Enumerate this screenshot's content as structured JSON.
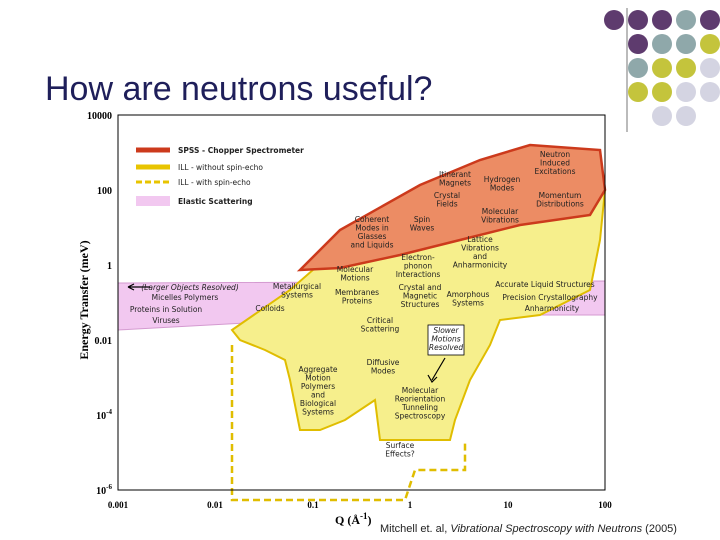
{
  "title": "How are neutrons useful?",
  "figure": {
    "legend": [
      "SPSS - Chopper Spectrometer",
      "ILL - without spin-echo",
      "ILL - with spin-echo",
      "Elastic Scattering"
    ],
    "y_axis_label": "Energy Transfer (meV)",
    "x_axis_label": {
      "text": "Q (Å",
      "exp": "-1",
      "close": ")"
    },
    "x_ticks": [
      "0.001",
      "0.01",
      "0.1",
      "1",
      "10",
      "100"
    ],
    "y_ticks": [
      {
        "base": "10000"
      },
      {
        "base": "100"
      },
      {
        "base": "1"
      },
      {
        "base": "0.01"
      },
      {
        "base": "10",
        "exp": "-4"
      },
      {
        "base": "10",
        "exp": "-6"
      }
    ],
    "labels": [
      [
        "Neutron",
        "Induced",
        "Excitations"
      ],
      [
        "Itinerant",
        "Magnets"
      ],
      [
        "Hydrogen",
        "Modes"
      ],
      [
        "Momentum",
        "Distributions"
      ],
      [
        "Crystal",
        "Fields"
      ],
      [
        "Molecular",
        "Vibrations"
      ],
      [
        "Coherent",
        "Modes in",
        "Glasses",
        "and Liquids"
      ],
      [
        "Spin",
        "Waves"
      ],
      [
        "Lattice",
        "Vibrations",
        "and",
        "Anharmonicity"
      ],
      [
        "Electron-",
        "phonon",
        "Interactions"
      ],
      [
        "Molecular",
        "Motions"
      ],
      [
        "Accurate Liquid Structures"
      ],
      [
        "Metallurgical",
        "Systems"
      ],
      [
        "Membranes",
        "Proteins"
      ],
      [
        "Crystal and",
        "Magnetic",
        "Structures"
      ],
      [
        "Amorphous",
        "Systems"
      ],
      [
        "Precision Crystallography"
      ],
      [
        "Anharmonicity"
      ],
      [
        "(Larger Objects Resolved)"
      ],
      [
        "Micelles Polymers"
      ],
      [
        "Proteins in Solution"
      ],
      [
        "Viruses"
      ],
      [
        "Colloids"
      ],
      [
        "Critical",
        "Scattering"
      ],
      [
        "Slower",
        "Motions",
        "Resolved"
      ],
      [
        "Diffusive",
        "Modes"
      ],
      [
        "Aggregate",
        "Motion",
        "Polymers",
        "and",
        "Biological",
        "Systems"
      ],
      [
        "Molecular",
        "Reorientation",
        "Tunneling",
        "Spectroscopy"
      ],
      [
        "Surface",
        "Effects?"
      ]
    ]
  },
  "citation": {
    "before": "Mitchell et. al, ",
    "italic": "Vibrational Spectroscopy with Neutrons",
    "after": " (2005)"
  }
}
